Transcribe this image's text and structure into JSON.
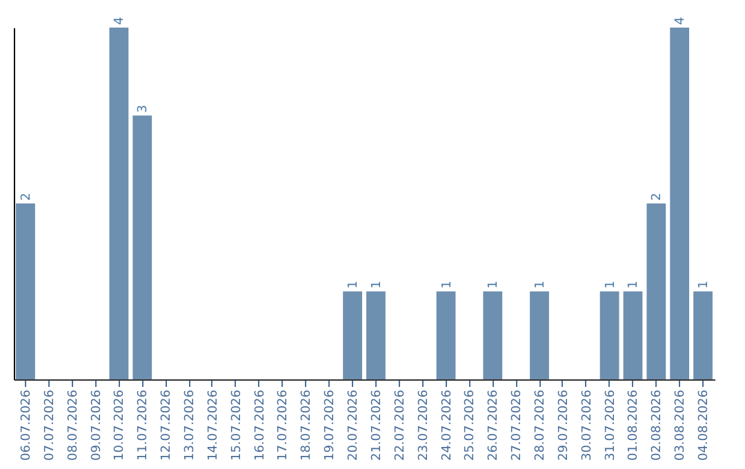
{
  "chart_data": {
    "type": "bar",
    "categories": [
      "06.07.2026",
      "07.07.2026",
      "08.07.2026",
      "09.07.2026",
      "10.07.2026",
      "11.07.2026",
      "12.07.2026",
      "13.07.2026",
      "14.07.2026",
      "15.07.2026",
      "16.07.2026",
      "17.07.2026",
      "18.07.2026",
      "19.07.2026",
      "20.07.2026",
      "21.07.2026",
      "22.07.2026",
      "23.07.2026",
      "24.07.2026",
      "25.07.2026",
      "26.07.2026",
      "27.07.2026",
      "28.07.2026",
      "29.07.2026",
      "30.07.2026",
      "31.07.2026",
      "01.08.2026",
      "02.08.2026",
      "03.08.2026",
      "04.08.2026"
    ],
    "values": [
      2,
      0,
      0,
      0,
      4,
      3,
      0,
      0,
      0,
      0,
      0,
      0,
      0,
      0,
      1,
      1,
      0,
      0,
      1,
      0,
      1,
      0,
      1,
      0,
      0,
      1,
      1,
      2,
      4,
      1
    ],
    "value_labels": [
      "2",
      null,
      null,
      null,
      "4",
      "3",
      null,
      null,
      null,
      null,
      null,
      null,
      null,
      null,
      "1",
      "1",
      null,
      null,
      "1",
      null,
      "1",
      null,
      "1",
      null,
      null,
      "1",
      "1",
      "2",
      "4",
      "1"
    ],
    "color": "#6d8fb0"
  }
}
